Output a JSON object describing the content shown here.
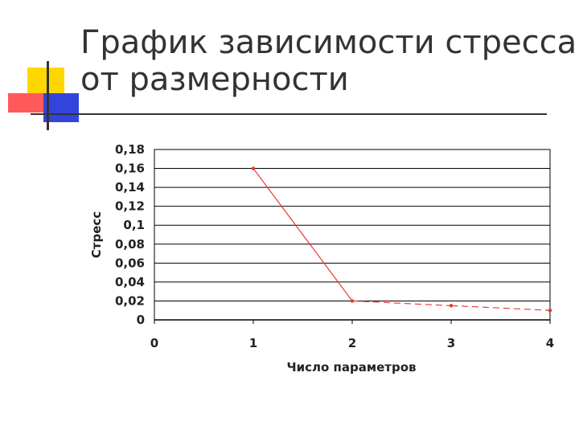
{
  "slide": {
    "title_line1": "График зависимости стресса",
    "title_line2": "от размерности"
  },
  "colors": {
    "deco_yellow": "#FFD700",
    "deco_red": "#FF5A5A",
    "deco_blue": "#3344DD",
    "series": "#E8352E"
  },
  "chart_data": {
    "type": "line",
    "xlabel": "Число параметров",
    "ylabel": "Стресс",
    "xlim": [
      0,
      4
    ],
    "ylim": [
      0,
      0.18
    ],
    "x_ticks": [
      "0",
      "1",
      "2",
      "3",
      "4"
    ],
    "y_ticks": [
      "0",
      "0,02",
      "0,04",
      "0,06",
      "0,08",
      "0,1",
      "0,12",
      "0,14",
      "0,16",
      "0,18"
    ],
    "grid": "horizontal",
    "series": [
      {
        "x": [
          1,
          2,
          3,
          4
        ],
        "values": [
          0.16,
          0.02,
          0.015,
          0.01
        ],
        "segment_styles": [
          "solid",
          "dashed",
          "dashed"
        ]
      }
    ]
  }
}
